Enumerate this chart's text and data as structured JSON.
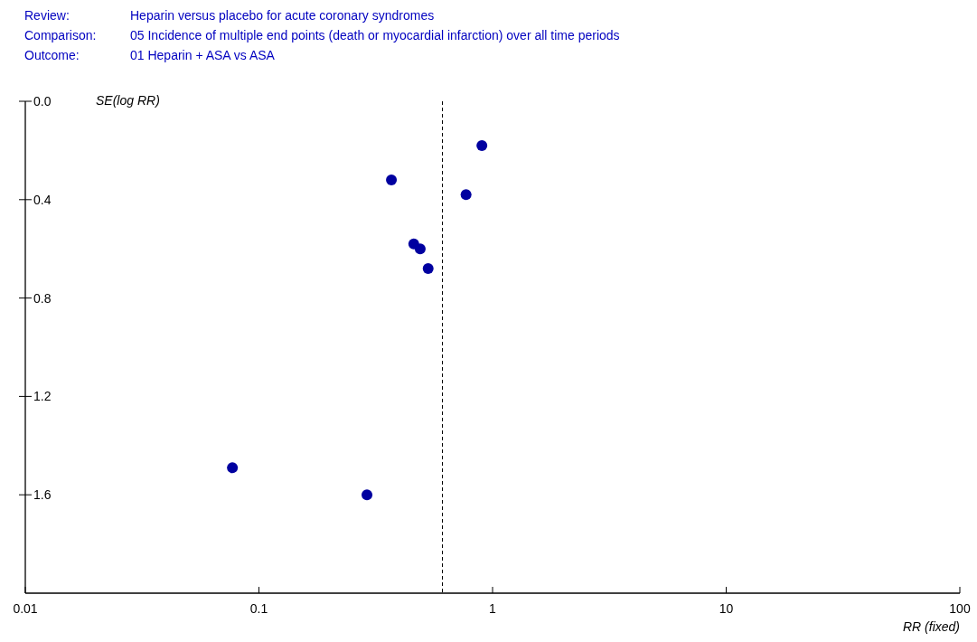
{
  "chart_data": {
    "type": "scatter",
    "annotations": [
      "Review:\tHeparin versus placebo for acute coronary syndromes",
      "Comparison:\t05 Incidence of multiple end points (death or myocardial infarction) over all time periods",
      "Outcome:\t01 Heparin + ASA vs ASA"
    ],
    "xlabel": "RR (fixed)",
    "ylabel": "SE(log RR)",
    "log": "x",
    "marker": "circle",
    "grid": false,
    "xlim": [
      0.01,
      100
    ],
    "xticks": [
      0.01,
      0.1,
      1,
      10,
      100
    ],
    "ylim": [
      2.0,
      0
    ],
    "yticks": [
      {
        "value": 0,
        "label": "0.0"
      },
      0.4,
      0.8,
      1.2,
      1.6
    ],
    "ref_lines": [
      {
        "axis": "x",
        "value": 0.61,
        "line_style": "dashed",
        "color": "#000000"
      }
    ],
    "series": [
      {
        "color": "#0000a0",
        "x": [
          0.9,
          0.369,
          0.77,
          0.46,
          0.49,
          0.53,
          0.077,
          0.29
        ],
        "values": [
          0.18,
          0.32,
          0.38,
          0.58,
          0.6,
          0.68,
          1.49,
          1.6
        ]
      }
    ]
  }
}
